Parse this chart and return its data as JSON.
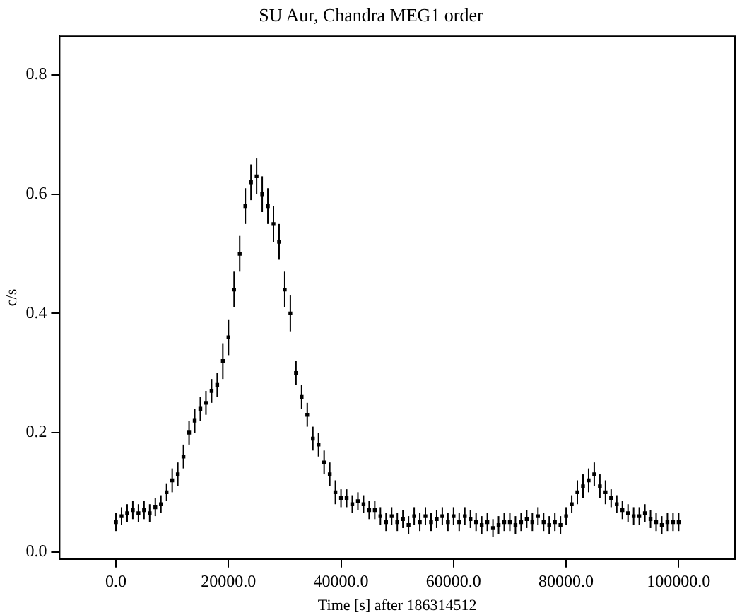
{
  "chart_data": {
    "type": "scatter",
    "title": "SU Aur, Chandra MEG1 order",
    "xlabel": "Time [s] after 186314512",
    "ylabel": "c/s",
    "xlim": [
      -10000,
      110000
    ],
    "ylim": [
      -0.012,
      0.865
    ],
    "xticks": [
      {
        "value": 0,
        "label": "0.0"
      },
      {
        "value": 20000,
        "label": "20000.0"
      },
      {
        "value": 40000,
        "label": "40000.0"
      },
      {
        "value": 60000,
        "label": "60000.0"
      },
      {
        "value": 80000,
        "label": "80000.0"
      },
      {
        "value": 100000,
        "label": "100000.0"
      }
    ],
    "yticks": [
      {
        "value": 0,
        "label": "0.0"
      },
      {
        "value": 0.2,
        "label": "0.2"
      },
      {
        "value": 0.4,
        "label": "0.4"
      },
      {
        "value": 0.6,
        "label": "0.6"
      },
      {
        "value": 0.8,
        "label": "0.8"
      }
    ],
    "grid": false,
    "legend": false,
    "marker": "square",
    "x": [
      0,
      1000,
      2000,
      3000,
      4000,
      5000,
      6000,
      7000,
      8000,
      9000,
      10000,
      11000,
      12000,
      13000,
      14000,
      15000,
      16000,
      17000,
      18000,
      19000,
      20000,
      21000,
      22000,
      23000,
      24000,
      25000,
      26000,
      27000,
      28000,
      29000,
      30000,
      31000,
      32000,
      33000,
      34000,
      35000,
      36000,
      37000,
      38000,
      39000,
      40000,
      41000,
      42000,
      43000,
      44000,
      45000,
      46000,
      47000,
      48000,
      49000,
      50000,
      51000,
      52000,
      53000,
      54000,
      55000,
      56000,
      57000,
      58000,
      59000,
      60000,
      61000,
      62000,
      63000,
      64000,
      65000,
      66000,
      67000,
      68000,
      69000,
      70000,
      71000,
      72000,
      73000,
      74000,
      75000,
      76000,
      77000,
      78000,
      79000,
      80000,
      81000,
      82000,
      83000,
      84000,
      85000,
      86000,
      87000,
      88000,
      89000,
      90000,
      91000,
      92000,
      93000,
      94000,
      95000,
      96000,
      97000,
      98000,
      99000,
      100000
    ],
    "series": [
      {
        "color": "#000000",
        "values": [
          0.05,
          0.06,
          0.065,
          0.07,
          0.065,
          0.07,
          0.065,
          0.075,
          0.08,
          0.1,
          0.12,
          0.13,
          0.16,
          0.2,
          0.22,
          0.24,
          0.25,
          0.27,
          0.28,
          0.32,
          0.36,
          0.44,
          0.5,
          0.58,
          0.62,
          0.63,
          0.6,
          0.58,
          0.55,
          0.52,
          0.44,
          0.4,
          0.3,
          0.26,
          0.23,
          0.19,
          0.18,
          0.15,
          0.13,
          0.1,
          0.09,
          0.09,
          0.08,
          0.085,
          0.08,
          0.07,
          0.07,
          0.06,
          0.05,
          0.06,
          0.05,
          0.055,
          0.045,
          0.06,
          0.05,
          0.06,
          0.05,
          0.055,
          0.06,
          0.05,
          0.06,
          0.05,
          0.06,
          0.055,
          0.05,
          0.045,
          0.05,
          0.04,
          0.045,
          0.05,
          0.05,
          0.045,
          0.05,
          0.055,
          0.05,
          0.06,
          0.05,
          0.045,
          0.05,
          0.045,
          0.06,
          0.08,
          0.1,
          0.11,
          0.12,
          0.13,
          0.11,
          0.1,
          0.09,
          0.08,
          0.07,
          0.065,
          0.06,
          0.06,
          0.065,
          0.055,
          0.05,
          0.045,
          0.05,
          0.05,
          0.05
        ],
        "errors": [
          0.015,
          0.015,
          0.015,
          0.015,
          0.015,
          0.015,
          0.015,
          0.015,
          0.015,
          0.015,
          0.02,
          0.02,
          0.02,
          0.02,
          0.02,
          0.02,
          0.02,
          0.02,
          0.02,
          0.03,
          0.03,
          0.03,
          0.03,
          0.03,
          0.03,
          0.03,
          0.03,
          0.03,
          0.03,
          0.03,
          0.03,
          0.03,
          0.02,
          0.02,
          0.02,
          0.02,
          0.02,
          0.02,
          0.02,
          0.02,
          0.015,
          0.015,
          0.015,
          0.015,
          0.015,
          0.015,
          0.015,
          0.015,
          0.015,
          0.015,
          0.015,
          0.015,
          0.015,
          0.015,
          0.015,
          0.015,
          0.015,
          0.015,
          0.015,
          0.015,
          0.015,
          0.015,
          0.015,
          0.015,
          0.015,
          0.015,
          0.015,
          0.015,
          0.015,
          0.015,
          0.015,
          0.015,
          0.015,
          0.015,
          0.015,
          0.015,
          0.015,
          0.015,
          0.015,
          0.015,
          0.015,
          0.015,
          0.02,
          0.02,
          0.02,
          0.02,
          0.02,
          0.02,
          0.015,
          0.015,
          0.015,
          0.015,
          0.015,
          0.015,
          0.015,
          0.015,
          0.015,
          0.015,
          0.015,
          0.015,
          0.015
        ]
      }
    ]
  }
}
